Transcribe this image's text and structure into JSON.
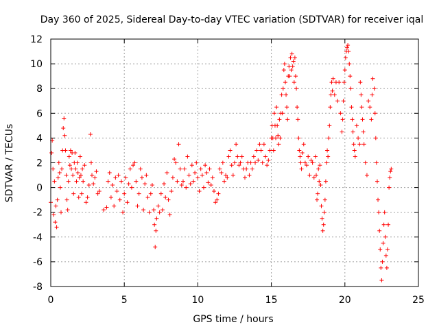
{
  "chart_data": {
    "type": "scatter",
    "title": "Day 360 of 2025, Sidereal Day-to-day VTEC variation (SDTVAR) for receiver iqal",
    "xlabel": "GPS time / hours",
    "ylabel": "SDTVAR / TECUs",
    "xlim": [
      0,
      25
    ],
    "ylim": [
      -8,
      12
    ],
    "xticks": [
      0,
      5,
      10,
      15,
      20,
      25
    ],
    "yticks": [
      -8,
      -6,
      -4,
      -2,
      0,
      2,
      4,
      6,
      8,
      10,
      12
    ],
    "grid": true,
    "marker": "plus",
    "colors": {
      "series": "#ff0000",
      "grid": "#a0a0a0",
      "axis": "#000000"
    },
    "series": [
      {
        "name": "SDTVAR",
        "points": [
          [
            0.0,
            -1.2
          ],
          [
            0.05,
            2.8
          ],
          [
            0.1,
            3.8
          ],
          [
            0.15,
            1.5
          ],
          [
            0.2,
            -2.2
          ],
          [
            0.25,
            0.5
          ],
          [
            0.3,
            -2.8
          ],
          [
            0.35,
            -1.5
          ],
          [
            0.4,
            -3.2
          ],
          [
            0.45,
            -1.0
          ],
          [
            0.5,
            0.8
          ],
          [
            0.55,
            2.0
          ],
          [
            0.6,
            1.2
          ],
          [
            0.65,
            0.0
          ],
          [
            0.7,
            -2.0
          ],
          [
            0.75,
            1.5
          ],
          [
            0.8,
            3.0
          ],
          [
            0.85,
            4.8
          ],
          [
            0.9,
            5.6
          ],
          [
            0.95,
            4.2
          ],
          [
            1.0,
            3.0
          ],
          [
            1.05,
            1.0
          ],
          [
            1.1,
            -1.0
          ],
          [
            1.15,
            -1.8
          ],
          [
            1.2,
            0.5
          ],
          [
            1.25,
            2.5
          ],
          [
            1.3,
            1.8
          ],
          [
            1.35,
            3.0
          ],
          [
            1.4,
            1.5
          ],
          [
            1.45,
            2.8
          ],
          [
            1.5,
            1.0
          ],
          [
            1.55,
            -0.5
          ],
          [
            1.6,
            2.0
          ],
          [
            1.65,
            2.8
          ],
          [
            1.7,
            1.5
          ],
          [
            1.75,
            0.5
          ],
          [
            1.8,
            2.0
          ],
          [
            1.85,
            1.2
          ],
          [
            1.9,
            -0.8
          ],
          [
            1.95,
            0.8
          ],
          [
            2.0,
            2.5
          ],
          [
            2.05,
            1.0
          ],
          [
            2.1,
            -0.5
          ],
          [
            2.15,
            1.5
          ],
          [
            2.2,
            0.5
          ],
          [
            2.3,
            1.8
          ],
          [
            2.4,
            -1.2
          ],
          [
            2.5,
            -0.8
          ],
          [
            2.6,
            0.2
          ],
          [
            2.7,
            4.3
          ],
          [
            2.75,
            2.0
          ],
          [
            2.8,
            1.0
          ],
          [
            2.9,
            0.3
          ],
          [
            3.0,
            0.8
          ],
          [
            3.1,
            1.3
          ],
          [
            3.2,
            -0.5
          ],
          [
            3.3,
            -0.3
          ],
          [
            3.6,
            -1.8
          ],
          [
            3.8,
            -1.6
          ],
          [
            3.9,
            0.5
          ],
          [
            4.0,
            1.2
          ],
          [
            4.1,
            -0.8
          ],
          [
            4.2,
            0.2
          ],
          [
            4.3,
            -1.5
          ],
          [
            4.4,
            0.8
          ],
          [
            4.5,
            -0.3
          ],
          [
            4.6,
            1.0
          ],
          [
            4.7,
            -1.0
          ],
          [
            4.8,
            0.5
          ],
          [
            4.9,
            -2.0
          ],
          [
            5.0,
            -0.5
          ],
          [
            5.1,
            0.8
          ],
          [
            5.2,
            -1.2
          ],
          [
            5.3,
            0.3
          ],
          [
            5.4,
            1.5
          ],
          [
            5.5,
            0.0
          ],
          [
            5.6,
            1.8
          ],
          [
            5.7,
            2.0
          ],
          [
            5.8,
            0.5
          ],
          [
            5.9,
            -1.5
          ],
          [
            6.0,
            -0.5
          ],
          [
            6.1,
            1.5
          ],
          [
            6.2,
            0.8
          ],
          [
            6.3,
            -1.8
          ],
          [
            6.4,
            0.3
          ],
          [
            6.5,
            1.0
          ],
          [
            6.6,
            -0.8
          ],
          [
            6.7,
            -2.0
          ],
          [
            6.8,
            -0.5
          ],
          [
            6.9,
            0.2
          ],
          [
            7.0,
            -1.8
          ],
          [
            7.05,
            -3.0
          ],
          [
            7.1,
            -4.8
          ],
          [
            7.15,
            -3.5
          ],
          [
            7.2,
            -2.5
          ],
          [
            7.3,
            -1.5
          ],
          [
            7.4,
            -2.0
          ],
          [
            7.5,
            -0.5
          ],
          [
            7.6,
            -1.8
          ],
          [
            7.7,
            0.3
          ],
          [
            7.8,
            -0.8
          ],
          [
            7.9,
            1.2
          ],
          [
            8.0,
            -1.0
          ],
          [
            8.1,
            -2.2
          ],
          [
            8.2,
            -0.3
          ],
          [
            8.3,
            0.8
          ],
          [
            8.4,
            2.3
          ],
          [
            8.5,
            2.0
          ],
          [
            8.6,
            0.5
          ],
          [
            8.7,
            3.5
          ],
          [
            8.8,
            1.5
          ],
          [
            8.9,
            0.2
          ],
          [
            9.0,
            0.5
          ],
          [
            9.1,
            1.5
          ],
          [
            9.2,
            0.0
          ],
          [
            9.3,
            2.5
          ],
          [
            9.4,
            1.0
          ],
          [
            9.5,
            0.3
          ],
          [
            9.6,
            1.8
          ],
          [
            9.7,
            0.5
          ],
          [
            9.8,
            1.2
          ],
          [
            9.9,
            2.0
          ],
          [
            10.0,
            0.8
          ],
          [
            10.1,
            -0.3
          ],
          [
            10.2,
            1.5
          ],
          [
            10.3,
            1.0
          ],
          [
            10.4,
            0.0
          ],
          [
            10.5,
            1.8
          ],
          [
            10.6,
            1.2
          ],
          [
            10.7,
            0.4
          ],
          [
            10.8,
            1.5
          ],
          [
            10.9,
            0.2
          ],
          [
            11.0,
            0.8
          ],
          [
            11.1,
            -0.3
          ],
          [
            11.2,
            -1.2
          ],
          [
            11.3,
            -1.0
          ],
          [
            11.4,
            -0.5
          ],
          [
            11.5,
            1.5
          ],
          [
            11.6,
            1.2
          ],
          [
            11.7,
            2.0
          ],
          [
            11.8,
            0.5
          ],
          [
            11.9,
            1.0
          ],
          [
            12.0,
            0.8
          ],
          [
            12.1,
            2.5
          ],
          [
            12.2,
            3.0
          ],
          [
            12.3,
            1.8
          ],
          [
            12.4,
            1.0
          ],
          [
            12.5,
            2.0
          ],
          [
            12.6,
            3.5
          ],
          [
            12.7,
            2.5
          ],
          [
            12.8,
            1.8
          ],
          [
            12.9,
            2.0
          ],
          [
            13.0,
            2.5
          ],
          [
            13.1,
            1.5
          ],
          [
            13.2,
            0.8
          ],
          [
            13.3,
            1.5
          ],
          [
            13.4,
            2.0
          ],
          [
            13.5,
            1.0
          ],
          [
            13.6,
            2.0
          ],
          [
            13.7,
            1.5
          ],
          [
            13.8,
            2.5
          ],
          [
            13.9,
            2.0
          ],
          [
            14.0,
            3.0
          ],
          [
            14.1,
            2.2
          ],
          [
            14.2,
            3.5
          ],
          [
            14.3,
            3.0
          ],
          [
            14.4,
            2.0
          ],
          [
            14.5,
            3.5
          ],
          [
            14.6,
            2.5
          ],
          [
            14.7,
            1.8
          ],
          [
            14.8,
            2.2
          ],
          [
            14.9,
            3.0
          ],
          [
            15.0,
            4.0
          ],
          [
            15.05,
            5.0
          ],
          [
            15.1,
            4.0
          ],
          [
            15.15,
            3.0
          ],
          [
            15.2,
            6.0
          ],
          [
            15.25,
            5.0
          ],
          [
            15.3,
            4.0
          ],
          [
            15.35,
            6.5
          ],
          [
            15.4,
            5.0
          ],
          [
            15.45,
            4.2
          ],
          [
            15.5,
            3.5
          ],
          [
            15.55,
            5.5
          ],
          [
            15.6,
            4.0
          ],
          [
            15.65,
            6.0
          ],
          [
            15.7,
            7.5
          ],
          [
            15.75,
            6.0
          ],
          [
            15.8,
            8.0
          ],
          [
            15.85,
            9.5
          ],
          [
            15.9,
            10.0
          ],
          [
            15.95,
            8.5
          ],
          [
            16.0,
            7.5
          ],
          [
            16.05,
            6.5
          ],
          [
            16.1,
            5.5
          ],
          [
            16.15,
            9.0
          ],
          [
            16.2,
            9.8
          ],
          [
            16.25,
            9.0
          ],
          [
            16.3,
            10.5
          ],
          [
            16.35,
            9.5
          ],
          [
            16.4,
            10.8
          ],
          [
            16.45,
            9.8
          ],
          [
            16.5,
            10.2
          ],
          [
            16.55,
            8.5
          ],
          [
            16.6,
            10.5
          ],
          [
            16.65,
            9.0
          ],
          [
            16.7,
            8.0
          ],
          [
            16.75,
            6.5
          ],
          [
            16.8,
            5.5
          ],
          [
            16.85,
            4.0
          ],
          [
            16.9,
            3.0
          ],
          [
            16.95,
            2.5
          ],
          [
            17.0,
            2.0
          ],
          [
            17.05,
            1.5
          ],
          [
            17.1,
            2.8
          ],
          [
            17.2,
            3.5
          ],
          [
            17.3,
            2.0
          ],
          [
            17.4,
            1.8
          ],
          [
            17.5,
            2.5
          ],
          [
            17.6,
            1.0
          ],
          [
            17.7,
            2.2
          ],
          [
            17.8,
            2.0
          ],
          [
            17.9,
            0.8
          ],
          [
            18.0,
            2.5
          ],
          [
            18.05,
            1.0
          ],
          [
            18.1,
            -1.0
          ],
          [
            18.15,
            -0.5
          ],
          [
            18.2,
            1.5
          ],
          [
            18.25,
            0.5
          ],
          [
            18.3,
            1.8
          ],
          [
            18.35,
            0.2
          ],
          [
            18.4,
            -1.5
          ],
          [
            18.45,
            -2.5
          ],
          [
            18.5,
            -3.5
          ],
          [
            18.55,
            -3.0
          ],
          [
            18.6,
            -2.0
          ],
          [
            18.65,
            -1.0
          ],
          [
            18.7,
            0.5
          ],
          [
            18.75,
            2.0
          ],
          [
            18.8,
            3.0
          ],
          [
            18.85,
            2.5
          ],
          [
            18.9,
            4.0
          ],
          [
            18.95,
            5.0
          ],
          [
            19.0,
            6.5
          ],
          [
            19.05,
            7.5
          ],
          [
            19.1,
            8.5
          ],
          [
            19.15,
            7.8
          ],
          [
            19.2,
            8.8
          ],
          [
            19.3,
            7.5
          ],
          [
            19.4,
            8.5
          ],
          [
            19.5,
            7.0
          ],
          [
            19.6,
            8.5
          ],
          [
            19.7,
            6.0
          ],
          [
            19.8,
            4.5
          ],
          [
            19.85,
            5.5
          ],
          [
            19.9,
            7.0
          ],
          [
            19.95,
            8.5
          ],
          [
            20.0,
            9.5
          ],
          [
            20.05,
            10.5
          ],
          [
            20.1,
            11.0
          ],
          [
            20.15,
            11.3
          ],
          [
            20.2,
            11.5
          ],
          [
            20.25,
            11.0
          ],
          [
            20.3,
            10.0
          ],
          [
            20.35,
            9.0
          ],
          [
            20.4,
            8.0
          ],
          [
            20.45,
            6.5
          ],
          [
            20.5,
            5.5
          ],
          [
            20.55,
            4.5
          ],
          [
            20.6,
            3.5
          ],
          [
            20.65,
            3.0
          ],
          [
            20.7,
            2.5
          ],
          [
            20.8,
            5.0
          ],
          [
            20.9,
            4.0
          ],
          [
            21.0,
            3.5
          ],
          [
            21.05,
            8.5
          ],
          [
            21.1,
            7.5
          ],
          [
            21.15,
            6.5
          ],
          [
            21.2,
            5.5
          ],
          [
            21.25,
            4.5
          ],
          [
            21.3,
            3.5
          ],
          [
            21.4,
            2.0
          ],
          [
            21.5,
            1.0
          ],
          [
            21.6,
            7.0
          ],
          [
            21.7,
            6.5
          ],
          [
            21.8,
            5.5
          ],
          [
            21.85,
            7.5
          ],
          [
            21.9,
            8.8
          ],
          [
            22.0,
            8.0
          ],
          [
            22.05,
            6.0
          ],
          [
            22.1,
            4.0
          ],
          [
            22.15,
            2.0
          ],
          [
            22.2,
            0.5
          ],
          [
            22.25,
            -1.0
          ],
          [
            22.3,
            -2.0
          ],
          [
            22.35,
            -3.5
          ],
          [
            22.4,
            -5.0
          ],
          [
            22.45,
            -6.5
          ],
          [
            22.5,
            -7.5
          ],
          [
            22.55,
            -6.0
          ],
          [
            22.6,
            -4.5
          ],
          [
            22.65,
            -3.0
          ],
          [
            22.7,
            -2.0
          ],
          [
            22.75,
            -4.0
          ],
          [
            22.8,
            -5.5
          ],
          [
            22.85,
            -6.5
          ],
          [
            22.9,
            -5.0
          ],
          [
            22.95,
            -3.0
          ],
          [
            23.0,
            0.0
          ],
          [
            23.05,
            0.8
          ],
          [
            23.1,
            1.3
          ],
          [
            23.15,
            1.5
          ]
        ]
      }
    ]
  }
}
